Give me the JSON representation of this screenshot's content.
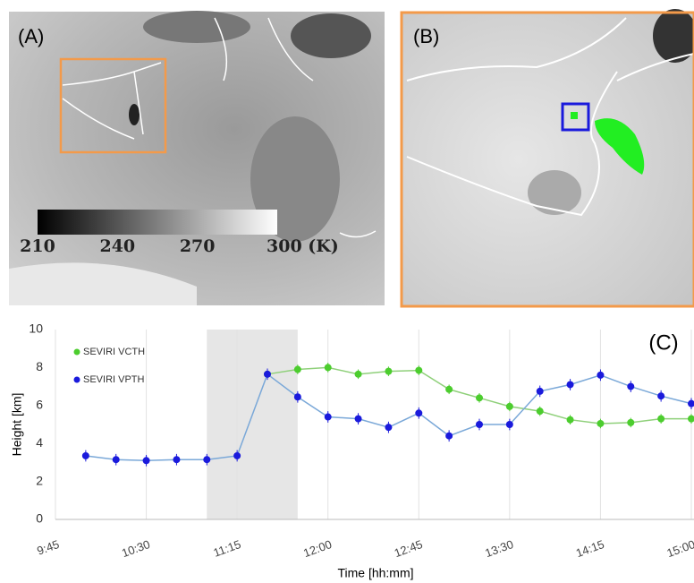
{
  "panels": {
    "a": {
      "label": "(A)"
    },
    "b": {
      "label": "(B)"
    }
  },
  "colorbar": {
    "range": [
      210,
      300
    ],
    "ticks": [
      210,
      240,
      270,
      {
        "value": 300,
        "label": "300 (K)"
      }
    ]
  },
  "chart_data": {
    "type": "line",
    "annotation": "(C)",
    "x_label": "Time [hh:mm]",
    "y_label": "Height [km]",
    "x": [
      "10:00",
      "10:15",
      "10:30",
      "10:45",
      "11:00",
      "11:15",
      "11:30",
      "11:45",
      "12:00",
      "12:15",
      "12:30",
      "12:45",
      "13:00",
      "13:15",
      "13:30",
      "13:45",
      "14:00",
      "14:15",
      "14:30",
      "14:45",
      "15:00"
    ],
    "series": [
      {
        "name": "SEVIRI VCTH",
        "color": "#4ccd2e",
        "error": 0.25,
        "values": [
          null,
          null,
          null,
          null,
          null,
          null,
          7.65,
          7.9,
          8.0,
          7.65,
          7.8,
          7.85,
          6.85,
          6.4,
          5.95,
          5.7,
          5.25,
          5.05,
          5.1,
          5.3,
          5.3
        ]
      },
      {
        "name": "SEVIRI VPTH",
        "color": "#1a1adc",
        "error": 0.3,
        "values": [
          3.35,
          3.15,
          3.1,
          3.15,
          3.15,
          3.35,
          7.65,
          6.45,
          5.4,
          5.3,
          4.85,
          5.6,
          4.4,
          5.0,
          5.0,
          6.75,
          7.1,
          7.6,
          7.0,
          6.5,
          6.1
        ]
      }
    ],
    "shade": [
      "11:00",
      "11:45"
    ],
    "xlim": [
      "9:45",
      "15:00"
    ],
    "xticks": [
      "9:45",
      "10:30",
      "11:15",
      "12:00",
      "12:45",
      "13:30",
      "14:15",
      "15:00"
    ],
    "ylim": [
      0,
      10
    ],
    "yticks": [
      0,
      2,
      4,
      6,
      8,
      10
    ],
    "grid": "x",
    "legend": "top-left"
  }
}
